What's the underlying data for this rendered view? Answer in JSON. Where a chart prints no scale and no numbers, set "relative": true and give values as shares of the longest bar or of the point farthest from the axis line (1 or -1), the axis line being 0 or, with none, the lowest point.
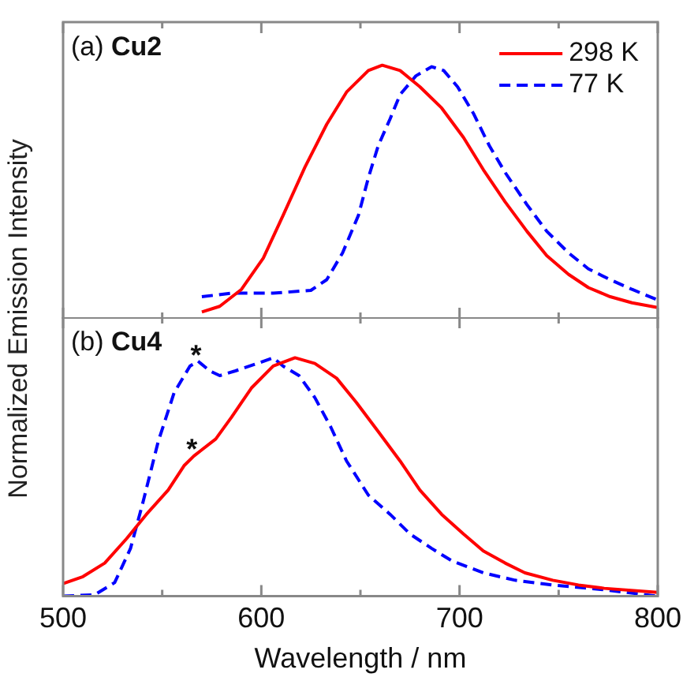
{
  "chart_data": [
    {
      "type": "line",
      "title": "(a) Cu2",
      "ylabel": "Normalized Emission Intensity",
      "relative": true,
      "xlim": [
        500,
        800
      ],
      "xticks": [
        500,
        {
          "value": 550,
          "label": null
        },
        600,
        {
          "value": 650,
          "label": null
        },
        700,
        {
          "value": 750,
          "label": null
        },
        800
      ],
      "tick_labels": false,
      "legend": "top right",
      "marker": "none",
      "series": [
        {
          "name": "298 K",
          "color": "#ff0000",
          "line_style": "solid",
          "x": [
            570,
            579,
            590,
            601,
            611,
            622,
            633,
            643,
            654,
            661,
            670,
            680,
            691,
            702,
            712,
            723,
            734,
            744,
            755,
            765,
            776,
            787,
            800
          ],
          "values": [
            0.027,
            0.049,
            0.116,
            0.239,
            0.408,
            0.598,
            0.767,
            0.894,
            0.979,
            1,
            0.979,
            0.915,
            0.831,
            0.715,
            0.588,
            0.461,
            0.345,
            0.249,
            0.175,
            0.123,
            0.087,
            0.063,
            0.044
          ]
        },
        {
          "name": "77 K",
          "color": "#0000ff",
          "line_style": "dashed",
          "x": [
            570,
            585,
            606,
            625,
            633,
            641,
            649,
            654,
            659,
            665,
            670,
            678,
            686,
            692,
            699,
            707,
            715,
            723,
            734,
            744,
            755,
            765,
            776,
            787,
            800
          ],
          "values": [
            0.087,
            0.101,
            0.101,
            0.112,
            0.154,
            0.26,
            0.408,
            0.556,
            0.683,
            0.789,
            0.884,
            0.958,
            0.994,
            0.979,
            0.915,
            0.81,
            0.683,
            0.577,
            0.45,
            0.345,
            0.26,
            0.197,
            0.154,
            0.116,
            0.074
          ]
        }
      ]
    },
    {
      "type": "line",
      "title": "(b) Cu4",
      "xlabel": "Wavelength / nm",
      "relative": true,
      "xlim": [
        500,
        800
      ],
      "xticks": [
        500,
        {
          "value": 550,
          "label": null
        },
        600,
        {
          "value": 650,
          "label": null
        },
        700,
        {
          "value": 750,
          "label": null
        },
        800
      ],
      "tick_labels": "x",
      "marker": "none",
      "annotations": [
        {
          "text": "*",
          "x": 567,
          "y": 0.986
        },
        {
          "text": "*",
          "x": 565,
          "y": 0.59
        }
      ],
      "series": [
        {
          "color": "#ff0000",
          "line_style": "solid",
          "x": [
            500,
            510,
            521,
            532,
            542,
            553,
            561,
            566,
            577,
            585,
            595,
            606,
            617,
            627,
            638,
            648,
            659,
            670,
            680,
            691,
            702,
            712,
            723,
            733,
            747,
            760,
            773,
            800
          ],
          "values": [
            0.053,
            0.082,
            0.139,
            0.241,
            0.343,
            0.445,
            0.547,
            0.588,
            0.659,
            0.751,
            0.873,
            0.965,
            1,
            0.976,
            0.914,
            0.812,
            0.69,
            0.567,
            0.445,
            0.343,
            0.261,
            0.19,
            0.139,
            0.098,
            0.067,
            0.047,
            0.033,
            0.016
          ]
        },
        {
          "color": "#0000ff",
          "line_style": "dashed",
          "x": [
            500,
            516,
            526,
            534,
            540,
            548,
            556,
            564,
            568,
            574,
            579,
            587,
            598,
            606,
            611,
            619,
            627,
            635,
            643,
            654,
            665,
            675,
            686,
            696,
            712,
            728,
            747,
            773,
            800
          ],
          "values": [
            0,
            0.006,
            0.057,
            0.2,
            0.384,
            0.649,
            0.853,
            0.965,
            0.986,
            0.945,
            0.925,
            0.945,
            0.976,
            1,
            0.965,
            0.925,
            0.833,
            0.71,
            0.567,
            0.424,
            0.343,
            0.261,
            0.2,
            0.149,
            0.098,
            0.067,
            0.047,
            0.027,
            0
          ]
        }
      ]
    }
  ]
}
